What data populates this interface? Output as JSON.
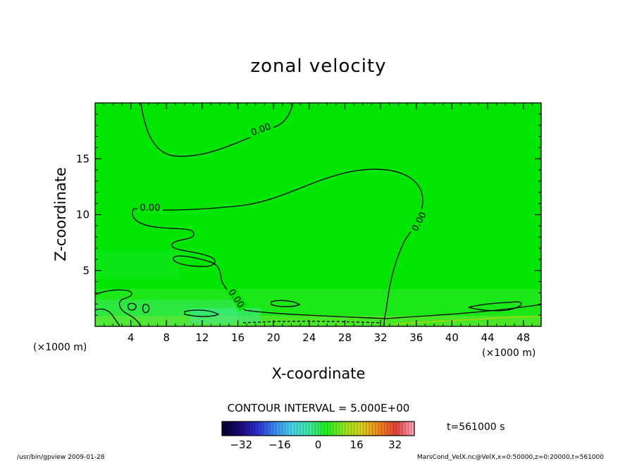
{
  "chart_data": {
    "type": "heatmap",
    "title": "zonal velocity",
    "xlabel": "X-coordinate",
    "ylabel": "Z-coordinate",
    "x_unit_label": "(×1000 m)",
    "y_unit_label": "(×1000 m)",
    "xlim": [
      0,
      50
    ],
    "ylim": [
      0,
      20
    ],
    "x_ticks": [
      4,
      8,
      12,
      16,
      20,
      24,
      28,
      32,
      36,
      40,
      44,
      48
    ],
    "y_ticks": [
      5,
      10,
      15
    ],
    "contour_interval_text": "CONTOUR INTERVAL = 5.000E+00",
    "contour_labels": [
      "0.00",
      "0.00",
      "0.00",
      "0.00"
    ],
    "colorbar": {
      "ticks": [
        -32,
        -16,
        0,
        16,
        32
      ],
      "range": [
        -40,
        40
      ],
      "colors": [
        "#000030",
        "#1c0a7a",
        "#2b2fd0",
        "#3a8cf0",
        "#48d6e6",
        "#3ee6a0",
        "#20f020",
        "#8ee61c",
        "#d8d020",
        "#f08818",
        "#e0403a",
        "#ff9cb0"
      ]
    },
    "time_label": "t=561000 s",
    "field_color": "#00e600"
  },
  "footer": {
    "left": "/usr/bin/gpview  2009-01-28",
    "right": "MarsCond_VelX.nc@VelX,x=0:50000,z=0:20000,t=561000"
  }
}
